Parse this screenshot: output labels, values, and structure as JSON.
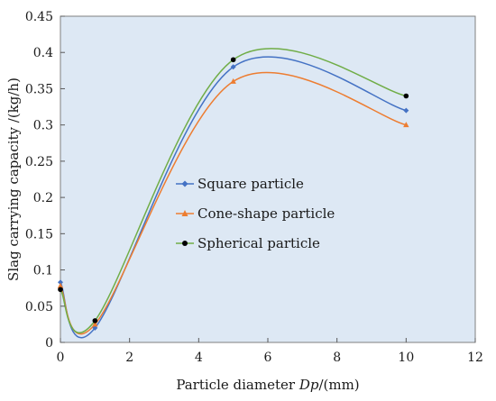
{
  "chart_data": {
    "type": "line",
    "xlabel": "Particle diameter Dp/(mm)",
    "xlabel_parts": {
      "before": "Particle diameter ",
      "italic": "Dp",
      "after": "/(mm)"
    },
    "ylabel": "Slag carrying capacity /(kg/h)",
    "xlim": [
      0,
      12
    ],
    "ylim": [
      0,
      0.45
    ],
    "x_ticks": [
      0,
      2,
      4,
      6,
      8,
      10,
      12
    ],
    "y_ticks": [
      0,
      0.05,
      0.1,
      0.15,
      0.2,
      0.25,
      0.3,
      0.35,
      0.4,
      0.45
    ],
    "x_tick_labels": [
      "0",
      "2",
      "4",
      "6",
      "8",
      "10",
      "12"
    ],
    "y_tick_labels": [
      "0",
      "0.05",
      "0.1",
      "0.15",
      "0.2",
      "0.25",
      "0.3",
      "0.35",
      "0.4",
      "0.45"
    ],
    "grid": false,
    "plot_background": "#dde8f4",
    "legend_position": "center-left",
    "smooth": true,
    "series": [
      {
        "name": "Square particle",
        "color": "#4472c4",
        "marker": "diamond",
        "x": [
          0,
          1,
          5,
          10
        ],
        "y": [
          0.083,
          0.02,
          0.38,
          0.32
        ]
      },
      {
        "name": "Cone-shape particle",
        "color": "#ed7d31",
        "marker": "triangle",
        "x": [
          0,
          1,
          5,
          10
        ],
        "y": [
          0.078,
          0.025,
          0.36,
          0.3
        ]
      },
      {
        "name": "Spherical particle",
        "color": "#000000",
        "line_color": "#70ad47",
        "marker": "circle",
        "x": [
          0,
          1,
          5,
          10
        ],
        "y": [
          0.073,
          0.03,
          0.39,
          0.34
        ]
      }
    ]
  }
}
